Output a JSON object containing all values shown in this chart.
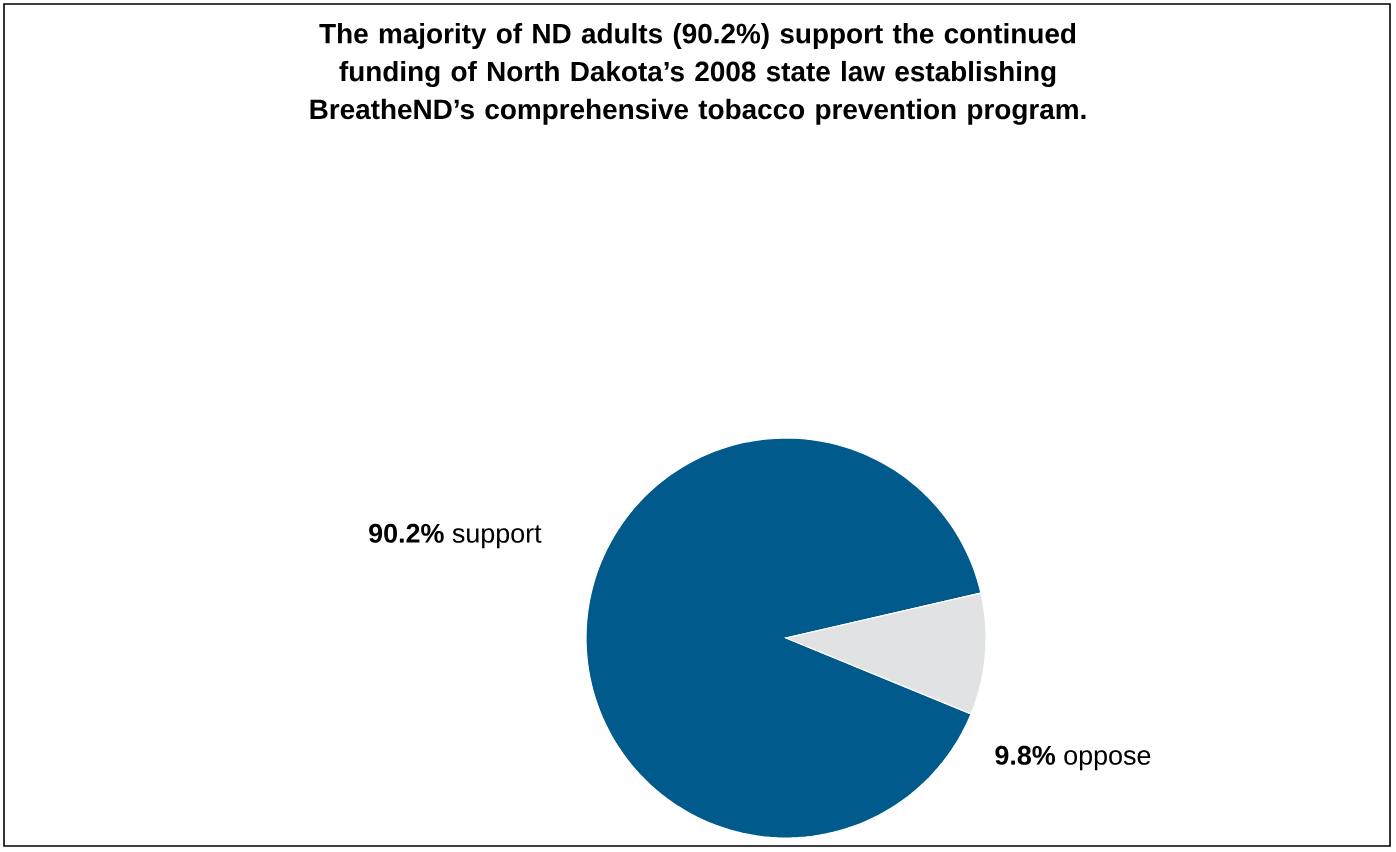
{
  "chart_data": {
    "type": "pie",
    "title": "The majority of ND adults (90.2%) support the continued funding of North Dakota’s 2008 state law establishing BreatheND’s comprehensive tobacco prevention program.",
    "categories": [
      "support",
      "oppose"
    ],
    "values": [
      90.2,
      9.8
    ],
    "value_labels": [
      "90.2%",
      "9.8%"
    ],
    "colors": [
      "#005a8c",
      "#e1e2e4"
    ]
  }
}
